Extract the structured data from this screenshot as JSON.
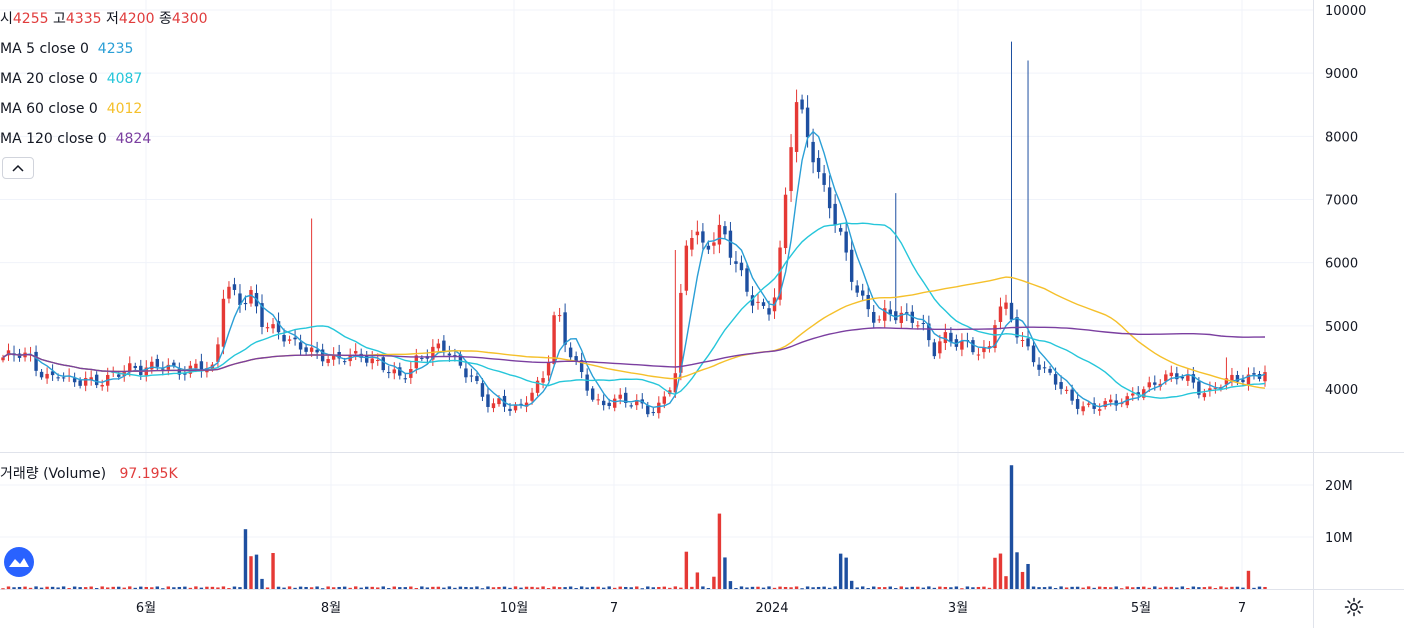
{
  "legend": {
    "ohlc": [
      {
        "label": "시",
        "value": "4255"
      },
      {
        "label": "고",
        "value": "4335"
      },
      {
        "label": "저",
        "value": "4200"
      },
      {
        "label": "종",
        "value": "4300"
      }
    ],
    "ma": [
      {
        "label": "MA 5 close 0",
        "value": "4235",
        "color": "#2a9fd6"
      },
      {
        "label": "MA 20 close 0",
        "value": "4087",
        "color": "#26c6da"
      },
      {
        "label": "MA 60 close 0",
        "value": "4012",
        "color": "#f5c02b"
      },
      {
        "label": "MA 120 close 0",
        "value": "4824",
        "color": "#7b3fa0"
      }
    ],
    "value_color": "#e03c3c",
    "collapse_icon": "chevron-up-icon"
  },
  "volume_legend": {
    "label": "거래량 (Volume)",
    "value": "97.195K"
  },
  "icons": {
    "logo": "tradingview-logo-icon",
    "settings": "gear-icon"
  },
  "colors": {
    "up": "#e53935",
    "down": "#1e4fa0"
  },
  "chart_data": {
    "type": "candlestick",
    "price_axis": {
      "ticks": [
        4000,
        5000,
        6000,
        7000,
        8000,
        9000,
        10000
      ],
      "range": [
        3000,
        10200
      ]
    },
    "volume_axis": {
      "ticks": [
        "10M",
        "20M"
      ],
      "tick_values": [
        10000000,
        20000000
      ],
      "range": [
        0,
        25000000
      ]
    },
    "time_axis": {
      "labels": [
        "6월",
        "8월",
        "10월",
        "7",
        "2024",
        "3월",
        "5월",
        "7"
      ]
    },
    "series": [
      {
        "name": "MA 5 close 0",
        "color": "#2a9fd6",
        "last": 4235
      },
      {
        "name": "MA 20 close 0",
        "color": "#26c6da",
        "last": 4087
      },
      {
        "name": "MA 60 close 0",
        "color": "#f5c02b",
        "last": 4012
      },
      {
        "name": "MA 120 close 0",
        "color": "#7b3fa0",
        "last": 4824
      }
    ],
    "segments": [
      [
        4500,
        4500,
        4520
      ],
      [
        4480,
        4300,
        4200
      ],
      [
        4250,
        4100,
        4060
      ],
      [
        4150,
        4150,
        4170
      ],
      [
        4230,
        4230,
        4300
      ],
      [
        4300,
        4400,
        4450
      ],
      [
        4320,
        4250,
        4200
      ],
      [
        4400,
        4380,
        4350
      ],
      [
        5600,
        5450,
        5300
      ],
      [
        5500,
        5150,
        5000
      ],
      [
        4900,
        4700,
        4650
      ],
      [
        4650,
        4600,
        4550
      ],
      [
        4450,
        4450,
        4480
      ],
      [
        4550,
        4480,
        4450
      ],
      [
        4250,
        4150,
        4200
      ],
      [
        4500,
        4600,
        4700
      ],
      [
        4650,
        4400,
        4250
      ],
      [
        4200,
        3950,
        3750
      ],
      [
        3800,
        3650,
        3650
      ],
      [
        3900,
        4100,
        4300
      ],
      [
        5300,
        4700,
        4400
      ],
      [
        4200,
        3900,
        3750
      ],
      [
        3800,
        3800,
        3750
      ],
      [
        3800,
        3700,
        3700
      ],
      [
        3900,
        4200,
        6200
      ],
      [
        6600,
        6300,
        6400
      ],
      [
        6500,
        6100,
        5800
      ],
      [
        5500,
        5400,
        5200
      ],
      [
        5600,
        7000,
        8600
      ],
      [
        8200,
        7800,
        7200
      ],
      [
        6800,
        6300,
        5800
      ],
      [
        5500,
        5300,
        5100
      ],
      [
        5200,
        5100,
        5100
      ],
      [
        5150,
        5000,
        4600
      ],
      [
        4800,
        4700,
        4700
      ],
      [
        4700,
        4650,
        4600
      ],
      [
        5300,
        5200,
        4900
      ],
      [
        4700,
        4500,
        4300
      ],
      [
        4150,
        3950,
        3800
      ],
      [
        3750,
        3750,
        3750
      ],
      [
        3750,
        3750,
        3800
      ],
      [
        4000,
        4050,
        4100
      ],
      [
        4150,
        4150,
        4200
      ],
      [
        4150,
        4000,
        3950
      ],
      [
        4050,
        4100,
        4150
      ],
      [
        4200,
        4250,
        4300
      ]
    ],
    "volume_peaks": [
      {
        "at": "2023-06 spike",
        "value": 11500000
      },
      {
        "at": "2023-10 spike",
        "value": 14500000
      },
      {
        "at": "2024 spike",
        "value": 23800000
      },
      {
        "at": "2024-03 spike",
        "value": 3500000
      },
      {
        "at": "2024-05 spike",
        "value": 2400000
      }
    ]
  }
}
